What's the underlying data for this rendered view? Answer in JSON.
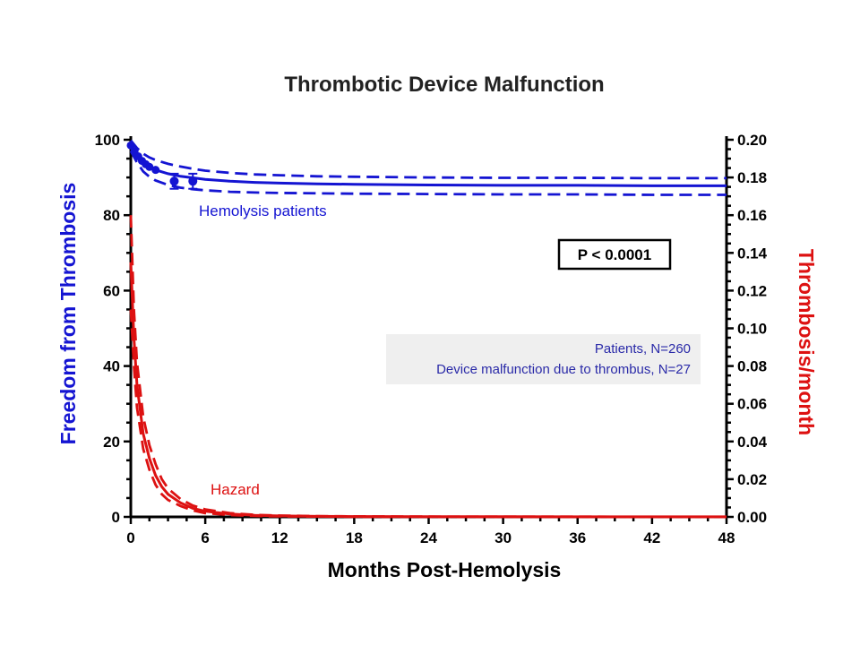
{
  "chart_data": {
    "type": "line",
    "title": "Thrombotic Device Malfunction",
    "xlabel": "Months Post-Hemolysis",
    "ylabel_left": "Freedom from Thrombosis",
    "ylabel_right": "Thrombosis/month",
    "xlim": [
      0,
      48
    ],
    "ylim_left": [
      0,
      100
    ],
    "ylim_right": [
      0,
      0.2
    ],
    "x_ticks": [
      "0",
      "6",
      "12",
      "18",
      "24",
      "30",
      "36",
      "42",
      "48"
    ],
    "y_left_ticks": [
      "0",
      "20",
      "40",
      "60",
      "80",
      "100"
    ],
    "y_right_ticks": [
      "0.00",
      "0.02",
      "0.04",
      "0.06",
      "0.08",
      "0.10",
      "0.12",
      "0.14",
      "0.16",
      "0.18",
      "0.20"
    ],
    "grid": false,
    "colors": {
      "survival": "#1414d2",
      "hazard": "#dd1111"
    },
    "series": [
      {
        "name": "Hemolysis patients",
        "axis": "left",
        "x": [
          0,
          0.5,
          1,
          1.5,
          2,
          3,
          4,
          5,
          6,
          8,
          10,
          12,
          15,
          18,
          24,
          30,
          36,
          42,
          48
        ],
        "values": [
          98.5,
          96.0,
          94.0,
          92.8,
          92.0,
          91.0,
          90.3,
          89.9,
          89.5,
          89.0,
          88.7,
          88.5,
          88.3,
          88.2,
          88.0,
          87.9,
          87.9,
          87.8,
          87.8
        ],
        "ci_upper": [
          99.8,
          97.8,
          96.3,
          95.3,
          94.6,
          93.6,
          92.9,
          92.3,
          91.8,
          91.2,
          90.8,
          90.6,
          90.3,
          90.2,
          90.0,
          89.9,
          89.9,
          89.8,
          89.8
        ],
        "ci_lower": [
          97.0,
          94.0,
          91.6,
          90.2,
          89.2,
          88.0,
          87.3,
          86.9,
          86.6,
          86.2,
          86.0,
          85.9,
          85.8,
          85.7,
          85.6,
          85.5,
          85.5,
          85.4,
          85.4
        ],
        "events": [
          {
            "x": 3.5,
            "y": 89.0,
            "lo": 87.0,
            "hi": 91.0
          },
          {
            "x": 5.0,
            "y": 89.0,
            "lo": 87.0,
            "hi": 91.0
          }
        ]
      },
      {
        "name": "Hazard",
        "axis": "right",
        "x": [
          0,
          0.25,
          0.5,
          1,
          1.5,
          2,
          2.5,
          3,
          4,
          5,
          6,
          8,
          10,
          12,
          15,
          18,
          24,
          30,
          36,
          42,
          48
        ],
        "values": [
          0.135,
          0.095,
          0.07,
          0.044,
          0.031,
          0.022,
          0.016,
          0.012,
          0.0075,
          0.0045,
          0.003,
          0.0015,
          0.0008,
          0.0005,
          0.0003,
          0.0002,
          0.0001,
          8e-05,
          6e-05,
          5e-05,
          4e-05
        ],
        "ci_upper": [
          0.16,
          0.11,
          0.082,
          0.053,
          0.038,
          0.028,
          0.02,
          0.015,
          0.0095,
          0.006,
          0.004,
          0.002,
          0.0011,
          0.0007,
          0.0004,
          0.0003,
          0.00015,
          0.0001,
          8e-05,
          7e-05,
          6e-05
        ],
        "ci_lower": [
          0.11,
          0.08,
          0.058,
          0.036,
          0.025,
          0.017,
          0.012,
          0.009,
          0.0058,
          0.0034,
          0.002,
          0.001,
          0.0005,
          0.0003,
          0.0002,
          0.0001,
          7e-05,
          5e-05,
          4e-05,
          3e-05,
          2e-05
        ]
      }
    ],
    "annotations": {
      "p_value": "P < 0.0001",
      "info_lines": [
        "Patients, N=260",
        "Device malfunction due to thrombus, N=27"
      ]
    }
  }
}
